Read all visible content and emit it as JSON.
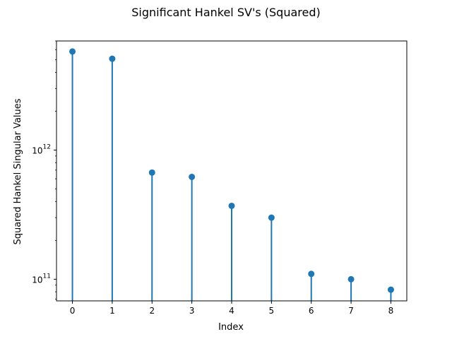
{
  "chart_data": {
    "type": "stem",
    "title": "Significant Hankel SV's (Squared)",
    "xlabel": "Index",
    "ylabel": "Squared Hankel Singular Values",
    "yscale": "log",
    "x": [
      0,
      1,
      2,
      3,
      4,
      5,
      6,
      7,
      8
    ],
    "values": [
      5800000000000.0,
      5100000000000.0,
      670000000000.0,
      620000000000.0,
      370000000000.0,
      300000000000.0,
      110000000000.0,
      100000000000.0,
      83000000000.0
    ],
    "xlim": [
      -0.4,
      8.4
    ],
    "ylim": [
      68000000000.0,
      7000000000000.0
    ],
    "xticks": [
      "0",
      "1",
      "2",
      "3",
      "4",
      "5",
      "6",
      "7",
      "8"
    ],
    "yticks": [
      {
        "value": 100000000000.0,
        "base": "10",
        "exp": "11"
      },
      {
        "value": 1000000000000.0,
        "base": "10",
        "exp": "12"
      }
    ],
    "grid": false,
    "color": "#1f77b4"
  }
}
